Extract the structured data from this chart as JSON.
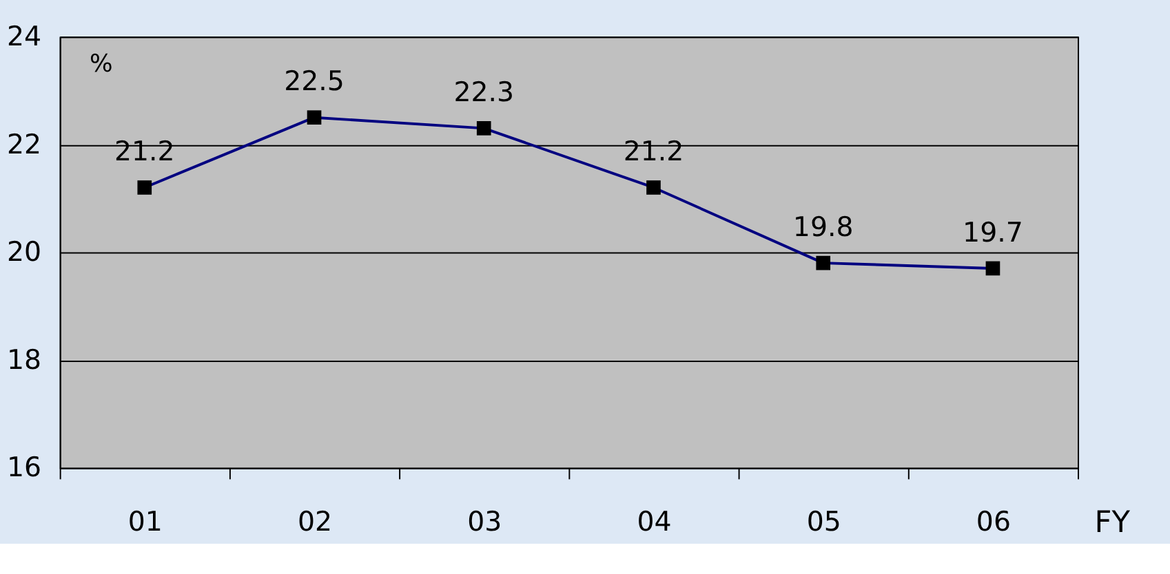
{
  "chart_data": {
    "type": "line",
    "categories": [
      "01",
      "02",
      "03",
      "04",
      "05",
      "06"
    ],
    "series": [
      {
        "color": "#000080",
        "values": [
          21.2,
          22.5,
          22.3,
          21.2,
          19.8,
          19.7
        ]
      }
    ],
    "xlabel": "FY",
    "annotations": [
      "%"
    ],
    "ylim": [
      16,
      24
    ],
    "yticks": [
      16,
      18,
      20,
      22,
      24
    ],
    "grid": "y",
    "marker": "square",
    "line_style": "solid",
    "data_labels": true
  }
}
